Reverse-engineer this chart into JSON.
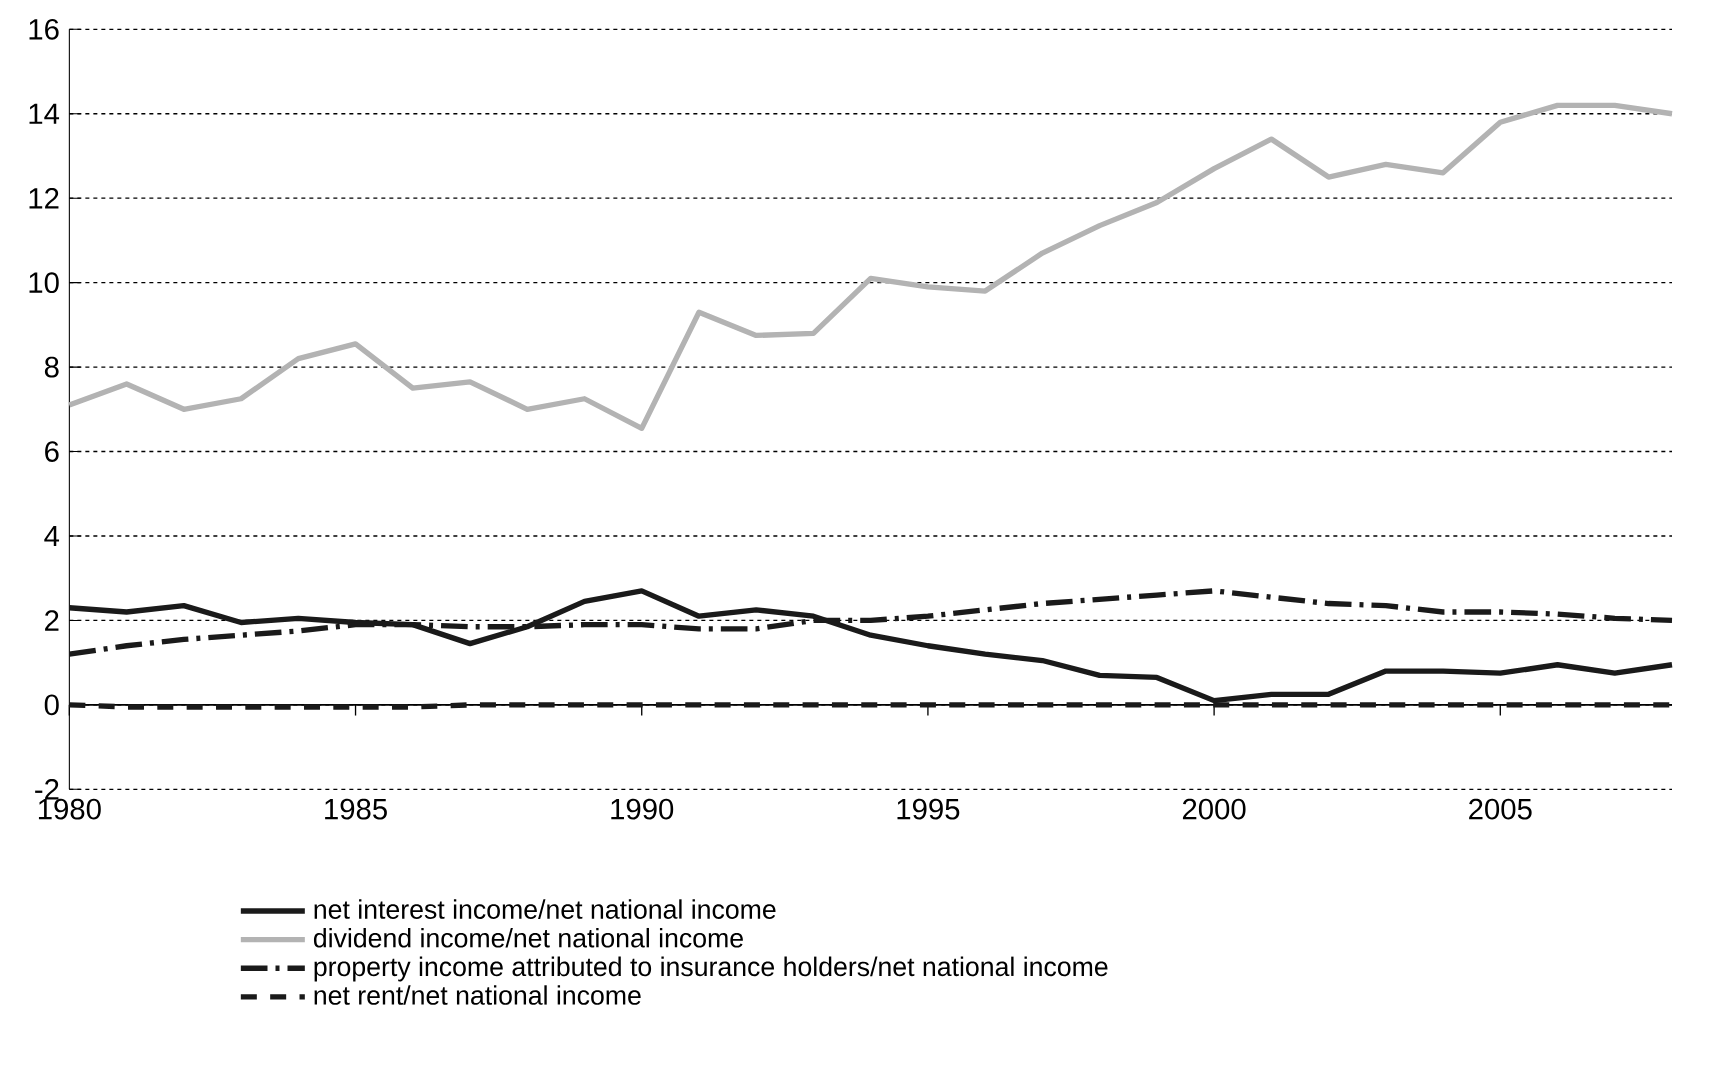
{
  "chart_data": {
    "type": "line",
    "x": [
      1980,
      1981,
      1982,
      1983,
      1984,
      1985,
      1986,
      1987,
      1988,
      1989,
      1990,
      1991,
      1992,
      1993,
      1994,
      1995,
      1996,
      1997,
      1998,
      1999,
      2000,
      2001,
      2002,
      2003,
      2004,
      2005,
      2006,
      2007,
      2008
    ],
    "series": [
      {
        "name": "net interest income/net national income",
        "color": "#1a1a1a",
        "line_style": "solid",
        "values": [
          2.3,
          2.2,
          2.35,
          1.95,
          2.05,
          1.95,
          1.9,
          1.45,
          1.85,
          2.45,
          2.7,
          2.1,
          2.25,
          2.1,
          1.65,
          1.4,
          1.2,
          1.05,
          0.7,
          0.65,
          0.1,
          0.25,
          0.25,
          0.8,
          0.8,
          0.75,
          0.95,
          0.75,
          0.95
        ]
      },
      {
        "name": "dividend income/net national income",
        "color": "#b3b3b3",
        "line_style": "solid",
        "values": [
          7.1,
          7.6,
          7.0,
          7.25,
          8.2,
          8.55,
          7.5,
          7.65,
          7.0,
          7.25,
          6.55,
          9.3,
          8.75,
          8.8,
          10.1,
          9.9,
          9.8,
          10.7,
          11.35,
          11.9,
          12.7,
          13.4,
          12.5,
          12.8,
          12.6,
          13.8,
          14.2,
          14.2,
          14.0
        ]
      },
      {
        "name": "property income attributed to insurance holders/net national income",
        "color": "#1a1a1a",
        "line_style": "dashdot",
        "values": [
          1.2,
          1.4,
          1.55,
          1.65,
          1.75,
          1.9,
          1.9,
          1.85,
          1.85,
          1.9,
          1.9,
          1.8,
          1.8,
          2.0,
          2.0,
          2.1,
          2.25,
          2.4,
          2.5,
          2.6,
          2.7,
          2.55,
          2.4,
          2.35,
          2.2,
          2.2,
          2.15,
          2.05,
          2.0
        ]
      },
      {
        "name": "net rent/net national income",
        "color": "#1a1a1a",
        "line_style": "dashed",
        "values": [
          0,
          -0.05,
          -0.05,
          -0.05,
          -0.05,
          -0.05,
          -0.05,
          0,
          0,
          0,
          0,
          0,
          0,
          0,
          0,
          0,
          0,
          0,
          0,
          0,
          0,
          0,
          0,
          0,
          0,
          0,
          0,
          0,
          0
        ]
      }
    ],
    "xlim": [
      1980,
      2008
    ],
    "xticks": [
      1980,
      1985,
      1990,
      1995,
      2000,
      2005
    ],
    "ylim": [
      -2,
      16
    ],
    "yticks": [
      -2,
      0,
      2,
      4,
      6,
      8,
      10,
      12,
      14,
      16
    ],
    "grid": "y",
    "legend": "bottom",
    "marker": "none"
  }
}
